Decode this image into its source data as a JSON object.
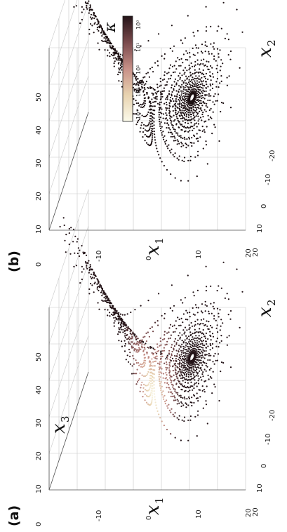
{
  "figure": {
    "colorbar": {
      "symbol": "κ",
      "ticks": [
        "10⁴",
        "10³",
        "10²",
        "10¹",
        "10⁰"
      ],
      "colors": [
        "#fbfaea",
        "#e8d3b0",
        "#c89088",
        "#7a4a4c",
        "#241418"
      ]
    }
  },
  "chart_data": [
    {
      "type": "scatter",
      "panel_label": "(a)",
      "attractor": "lorenz",
      "xlabel": "x",
      "xlabel_sub": "1",
      "ylabel": "x",
      "ylabel_sub": "2",
      "zlabel": "x",
      "zlabel_sub": "3",
      "x1_ticks": [
        "-10",
        "0",
        "10",
        "20"
      ],
      "x2_ticks": [
        "20",
        "10",
        "0",
        "-10",
        "-20"
      ],
      "x3_ticks": [
        "0",
        "10",
        "20",
        "30",
        "40",
        "50"
      ],
      "x1_range": [
        -15,
        20
      ],
      "x2_range": [
        -20,
        20
      ],
      "x3_range": [
        0,
        50
      ],
      "color_mode": "kappa",
      "grid": true
    },
    {
      "type": "scatter",
      "panel_label": "(b)",
      "attractor": "lorenz",
      "xlabel": "x",
      "xlabel_sub": "1",
      "ylabel": "x",
      "ylabel_sub": "2",
      "zlabel": "",
      "zlabel_sub": "",
      "x1_ticks": [
        "-10",
        "0",
        "10",
        "20"
      ],
      "x2_ticks": [
        "20",
        "10",
        "0",
        "-10",
        "-20"
      ],
      "x3_ticks": [
        "0",
        "10",
        "20",
        "30",
        "40",
        "50"
      ],
      "x1_range": [
        -15,
        20
      ],
      "x2_range": [
        -20,
        20
      ],
      "x3_range": [
        0,
        50
      ],
      "color_mode": "dark",
      "grid": true
    }
  ]
}
